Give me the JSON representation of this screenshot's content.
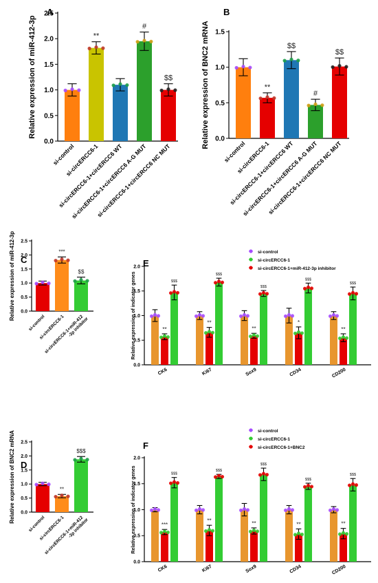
{
  "chart_data": [
    {
      "panel": "A",
      "type": "bar",
      "ylabel": "Relative expression of miR-412-3p",
      "ylim": [
        0,
        2.5
      ],
      "yticks": [
        "0.0",
        "0.5",
        "1.0",
        "1.5",
        "2.0",
        "2.5"
      ],
      "categories": [
        "si-control",
        "si-circERCC6-1",
        "si-circERCC6-1+circERCC6 WT",
        "si-circERCC6-1+circERCC6 A-G MUT",
        "si-circERCC6-1+circERCC6 NC MUT"
      ],
      "values": [
        1.0,
        1.82,
        1.1,
        1.95,
        1.0
      ],
      "errors": [
        0.12,
        0.12,
        0.12,
        0.18,
        0.12
      ],
      "significance": [
        "",
        "**",
        "",
        "#",
        "$$"
      ],
      "colors": [
        "#ff7f0e",
        "#c9c400",
        "#1f77b4",
        "#2ca02c",
        "#e50000"
      ]
    },
    {
      "panel": "B",
      "type": "bar",
      "ylabel": "Relative expression of BNC2 mRNA",
      "ylim": [
        0,
        1.5
      ],
      "yticks": [
        "0.0",
        "0.5",
        "1.0",
        "1.5"
      ],
      "categories": [
        "si-control",
        "si-circERCC6-1",
        "si-circERCC6-1+circERCC6 WT",
        "si-circERCC6-1+circERCC6 A-G MUT",
        "si-circERCC6-1+circERCC6 NC MUT"
      ],
      "values": [
        1.0,
        0.57,
        1.1,
        0.47,
        1.01
      ],
      "errors": [
        0.12,
        0.07,
        0.12,
        0.08,
        0.12
      ],
      "significance": [
        "",
        "**",
        "$$",
        "#",
        "$$"
      ],
      "colors": [
        "#ff7f0e",
        "#e50000",
        "#1f77b4",
        "#2ca02c",
        "#e50000"
      ]
    },
    {
      "panel": "C",
      "type": "bar",
      "ylabel": "Relative expression of miR-412-3p",
      "ylim": [
        0,
        2.5
      ],
      "yticks": [
        "0.0",
        "0.5",
        "1.0",
        "1.5",
        "2.0",
        "2.5"
      ],
      "categories": [
        "si-control",
        "si-circERCC6-1",
        "si-circERCC6-1+miR-412\n-3p inhibitor"
      ],
      "values": [
        1.0,
        1.82,
        1.09
      ],
      "errors": [
        0.07,
        0.11,
        0.12
      ],
      "significance": [
        "",
        "***",
        "$$"
      ],
      "colors": [
        "#e50000",
        "#ff8c1a",
        "#33cc33"
      ]
    },
    {
      "panel": "D",
      "type": "bar",
      "ylabel": "Relative expression of BNC2 mRNA",
      "ylim": [
        0,
        2.5
      ],
      "yticks": [
        "0.0",
        "0.5",
        "1.0",
        "1.5",
        "2.0",
        "2.5"
      ],
      "categories": [
        "si-control",
        "si-circERCC6-1",
        "si-circERCC6-1+miR-412\n-3p inhibitor"
      ],
      "values": [
        1.0,
        0.57,
        1.88
      ],
      "errors": [
        0.06,
        0.06,
        0.1
      ],
      "significance": [
        "",
        "**",
        "$$$"
      ],
      "colors": [
        "#e50000",
        "#ff8c1a",
        "#33cc33"
      ]
    },
    {
      "panel": "E",
      "type": "bar",
      "ylabel": "Relative expression of indicator genes",
      "ylim": [
        0,
        2.0
      ],
      "yticks": [
        "0.0",
        "0.5",
        "1.0",
        "1.5",
        "2.0"
      ],
      "categories": [
        "CK6",
        "Ki67",
        "Sox9",
        "CD34",
        "CD200"
      ],
      "legend_position": "top",
      "series": [
        {
          "name": "si-control",
          "color": "#e8962e",
          "values": [
            1.0,
            1.0,
            1.0,
            1.0,
            1.0
          ],
          "errors": [
            0.12,
            0.08,
            0.1,
            0.15,
            0.08
          ],
          "significance": [
            "",
            "",
            "",
            "",
            ""
          ]
        },
        {
          "name": "si-circERCC6-1",
          "color": "#e50000",
          "values": [
            0.57,
            0.66,
            0.59,
            0.65,
            0.55
          ],
          "errors": [
            0.06,
            0.1,
            0.05,
            0.12,
            0.08
          ],
          "significance": [
            "**",
            "**",
            "**",
            "*",
            "**"
          ]
        },
        {
          "name": "si-circERCC6-1+miR-412-3p inhibitor",
          "color": "#33cc33",
          "values": [
            1.47,
            1.68,
            1.45,
            1.56,
            1.45
          ],
          "errors": [
            0.15,
            0.08,
            0.06,
            0.1,
            0.13
          ],
          "significance": [
            "$$$",
            "$$$",
            "$$$",
            "$$$",
            "$$$"
          ]
        }
      ],
      "legend_marker_colors": [
        "#a64dff",
        "#33cc33",
        "#e50000"
      ]
    },
    {
      "panel": "F",
      "type": "bar",
      "ylabel": "Relative expression of indicator genes",
      "ylim": [
        0,
        2.0
      ],
      "yticks": [
        "0.0",
        "0.5",
        "1.0",
        "1.5",
        "2.0"
      ],
      "categories": [
        "CK6",
        "Ki67",
        "Sox9",
        "CD34",
        "CD200"
      ],
      "legend_position": "top",
      "series": [
        {
          "name": "si-control",
          "color": "#e8962e",
          "values": [
            1.0,
            1.0,
            1.0,
            1.0,
            1.0
          ],
          "errors": [
            0.04,
            0.08,
            0.12,
            0.08,
            0.06
          ],
          "significance": [
            "",
            "",
            "",
            "",
            ""
          ]
        },
        {
          "name": "si-circERCC6-1",
          "color": "#e50000",
          "values": [
            0.57,
            0.6,
            0.59,
            0.53,
            0.54
          ],
          "errors": [
            0.05,
            0.1,
            0.06,
            0.1,
            0.1
          ],
          "significance": [
            "***",
            "**",
            "**",
            "**",
            "**"
          ]
        },
        {
          "name": "si-circERCC6-1+BNC2",
          "color": "#33cc33",
          "values": [
            1.52,
            1.64,
            1.68,
            1.45,
            1.48
          ],
          "errors": [
            0.1,
            0.04,
            0.12,
            0.06,
            0.12
          ],
          "significance": [
            "$$$",
            "$$$",
            "$$$",
            "$$$",
            "$$$"
          ]
        }
      ],
      "legend_marker_colors": [
        "#a64dff",
        "#33cc33",
        "#e50000"
      ]
    }
  ]
}
